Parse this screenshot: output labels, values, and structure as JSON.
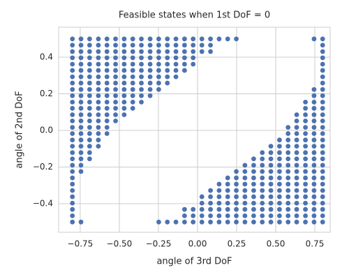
{
  "chart_data": {
    "type": "scatter",
    "title": "Feasible states when 1st DoF = 0",
    "x_label": "angle of 3rd DoF",
    "y_label": "angle of 2nd DoF",
    "color": "#4c72b0",
    "grid": true,
    "xlim": [
      -0.888,
      0.848
    ],
    "ylim": [
      -0.556,
      0.564
    ],
    "xticks": [
      {
        "value": -0.75,
        "label": "−0.75"
      },
      {
        "value": -0.5,
        "label": "−0.50"
      },
      {
        "value": -0.25,
        "label": "−0.25"
      },
      {
        "value": 0,
        "label": "0.00"
      },
      0.25,
      {
        "value": 0.5,
        "label": "0.50"
      },
      0.75
    ],
    "yticks": [
      {
        "value": -0.4,
        "label": "−0.4"
      },
      {
        "value": -0.2,
        "label": "−0.2"
      },
      {
        "value": 0,
        "label": "0.0"
      },
      0.2,
      0.4
    ],
    "columns": [
      {
        "x": -0.8,
        "y": [
          -0.5,
          -0.466,
          -0.431,
          -0.397,
          -0.362,
          -0.328,
          -0.293,
          -0.259,
          -0.224,
          -0.19,
          -0.155,
          -0.121,
          -0.086,
          -0.052,
          -0.017,
          0.017,
          0.052,
          0.086,
          0.121,
          0.155,
          0.19,
          0.224,
          0.259,
          0.293,
          0.328,
          0.362,
          0.397,
          0.431,
          0.466,
          0.5
        ]
      },
      {
        "x": -0.745,
        "y": [
          -0.5,
          -0.224,
          -0.19,
          -0.155,
          -0.121,
          -0.086,
          -0.052,
          -0.017,
          0.017,
          0.052,
          0.086,
          0.121,
          0.155,
          0.19,
          0.224,
          0.259,
          0.293,
          0.328,
          0.362,
          0.397,
          0.431,
          0.466,
          0.5
        ]
      },
      {
        "x": -0.69,
        "y": [
          -0.155,
          -0.121,
          -0.086,
          -0.052,
          -0.017,
          0.017,
          0.052,
          0.086,
          0.121,
          0.155,
          0.19,
          0.224,
          0.259,
          0.293,
          0.328,
          0.362,
          0.397,
          0.431,
          0.466,
          0.5
        ]
      },
      {
        "x": -0.634,
        "y": [
          -0.086,
          -0.052,
          -0.017,
          0.017,
          0.052,
          0.086,
          0.121,
          0.155,
          0.19,
          0.224,
          0.259,
          0.293,
          0.328,
          0.362,
          0.397,
          0.431,
          0.466,
          0.5
        ]
      },
      {
        "x": -0.579,
        "y": [
          -0.017,
          0.017,
          0.052,
          0.086,
          0.121,
          0.155,
          0.19,
          0.224,
          0.259,
          0.293,
          0.328,
          0.362,
          0.397,
          0.431,
          0.466,
          0.5
        ]
      },
      {
        "x": -0.524,
        "y": [
          0.052,
          0.086,
          0.121,
          0.155,
          0.19,
          0.224,
          0.259,
          0.293,
          0.328,
          0.362,
          0.397,
          0.431,
          0.466,
          0.5
        ]
      },
      {
        "x": -0.469,
        "y": [
          0.086,
          0.121,
          0.155,
          0.19,
          0.224,
          0.259,
          0.293,
          0.328,
          0.362,
          0.397,
          0.431,
          0.466,
          0.5
        ]
      },
      {
        "x": -0.414,
        "y": [
          0.121,
          0.155,
          0.19,
          0.224,
          0.259,
          0.293,
          0.328,
          0.362,
          0.397,
          0.431,
          0.466,
          0.5
        ]
      },
      {
        "x": -0.359,
        "y": [
          0.155,
          0.19,
          0.224,
          0.259,
          0.293,
          0.328,
          0.362,
          0.397,
          0.431,
          0.466,
          0.5
        ]
      },
      {
        "x": -0.303,
        "y": [
          0.19,
          0.224,
          0.259,
          0.293,
          0.328,
          0.362,
          0.397,
          0.431,
          0.466,
          0.5
        ]
      },
      {
        "x": -0.248,
        "y": [
          -0.5,
          0.224,
          0.259,
          0.293,
          0.328,
          0.362,
          0.397,
          0.431,
          0.466,
          0.5
        ]
      },
      {
        "x": -0.193,
        "y": [
          -0.5,
          0.259,
          0.293,
          0.328,
          0.362,
          0.397,
          0.431,
          0.466,
          0.5
        ]
      },
      {
        "x": -0.138,
        "y": [
          -0.5,
          0.293,
          0.328,
          0.362,
          0.397,
          0.431,
          0.466,
          0.5
        ]
      },
      {
        "x": -0.083,
        "y": [
          -0.5,
          -0.466,
          -0.431,
          0.328,
          0.362,
          0.397,
          0.431,
          0.466,
          0.5
        ]
      },
      {
        "x": -0.028,
        "y": [
          -0.5,
          -0.466,
          -0.431,
          0.362,
          0.397,
          0.431,
          0.466,
          0.5
        ]
      },
      {
        "x": 0.028,
        "y": [
          -0.5,
          -0.466,
          -0.431,
          -0.397,
          -0.362,
          0.431,
          0.466,
          0.5
        ]
      },
      {
        "x": 0.083,
        "y": [
          -0.5,
          -0.466,
          -0.431,
          -0.397,
          -0.362,
          -0.328,
          0.431,
          0.466,
          0.5
        ]
      },
      {
        "x": 0.138,
        "y": [
          -0.5,
          -0.466,
          -0.431,
          -0.397,
          -0.362,
          -0.328,
          -0.293,
          0.5
        ]
      },
      {
        "x": 0.193,
        "y": [
          -0.5,
          -0.466,
          -0.431,
          -0.397,
          -0.362,
          -0.328,
          -0.293,
          -0.259,
          0.5
        ]
      },
      {
        "x": 0.248,
        "y": [
          -0.5,
          -0.466,
          -0.431,
          -0.397,
          -0.362,
          -0.328,
          -0.293,
          -0.259,
          -0.224,
          0.5
        ]
      },
      {
        "x": 0.303,
        "y": [
          -0.5,
          -0.466,
          -0.431,
          -0.397,
          -0.362,
          -0.328,
          -0.293,
          -0.259,
          -0.224,
          -0.19
        ]
      },
      {
        "x": 0.359,
        "y": [
          -0.5,
          -0.466,
          -0.431,
          -0.397,
          -0.362,
          -0.328,
          -0.293,
          -0.259,
          -0.224,
          -0.19,
          -0.155
        ]
      },
      {
        "x": 0.414,
        "y": [
          -0.5,
          -0.466,
          -0.431,
          -0.397,
          -0.362,
          -0.328,
          -0.293,
          -0.259,
          -0.224,
          -0.19,
          -0.155,
          -0.121
        ]
      },
      {
        "x": 0.469,
        "y": [
          -0.5,
          -0.466,
          -0.431,
          -0.397,
          -0.362,
          -0.328,
          -0.293,
          -0.259,
          -0.224,
          -0.19,
          -0.155,
          -0.121,
          -0.086
        ]
      },
      {
        "x": 0.524,
        "y": [
          -0.5,
          -0.466,
          -0.431,
          -0.397,
          -0.362,
          -0.328,
          -0.293,
          -0.259,
          -0.224,
          -0.19,
          -0.155,
          -0.121,
          -0.086,
          -0.052
        ]
      },
      {
        "x": 0.579,
        "y": [
          -0.5,
          -0.466,
          -0.431,
          -0.397,
          -0.362,
          -0.328,
          -0.293,
          -0.259,
          -0.224,
          -0.19,
          -0.155,
          -0.121,
          -0.086,
          -0.052,
          -0.017,
          0.017
        ]
      },
      {
        "x": 0.634,
        "y": [
          -0.5,
          -0.466,
          -0.431,
          -0.397,
          -0.362,
          -0.328,
          -0.293,
          -0.259,
          -0.224,
          -0.19,
          -0.155,
          -0.121,
          -0.086,
          -0.052,
          -0.017,
          0.017,
          0.052,
          0.086
        ]
      },
      {
        "x": 0.69,
        "y": [
          -0.5,
          -0.466,
          -0.431,
          -0.397,
          -0.362,
          -0.328,
          -0.293,
          -0.259,
          -0.224,
          -0.19,
          -0.155,
          -0.121,
          -0.086,
          -0.052,
          -0.017,
          0.017,
          0.052,
          0.086,
          0.121,
          0.155
        ]
      },
      {
        "x": 0.745,
        "y": [
          -0.5,
          -0.466,
          -0.431,
          -0.397,
          -0.362,
          -0.328,
          -0.293,
          -0.259,
          -0.224,
          -0.19,
          -0.155,
          -0.121,
          -0.086,
          -0.052,
          -0.017,
          0.017,
          0.052,
          0.086,
          0.121,
          0.155,
          0.19,
          0.224,
          0.5
        ]
      },
      {
        "x": 0.8,
        "y": [
          -0.5,
          -0.466,
          -0.431,
          -0.397,
          -0.362,
          -0.328,
          -0.293,
          -0.259,
          -0.224,
          -0.19,
          -0.155,
          -0.121,
          -0.086,
          -0.052,
          -0.017,
          0.017,
          0.052,
          0.086,
          0.121,
          0.155,
          0.19,
          0.224,
          0.259,
          0.293,
          0.328,
          0.362,
          0.397,
          0.431,
          0.466,
          0.5
        ]
      }
    ]
  }
}
